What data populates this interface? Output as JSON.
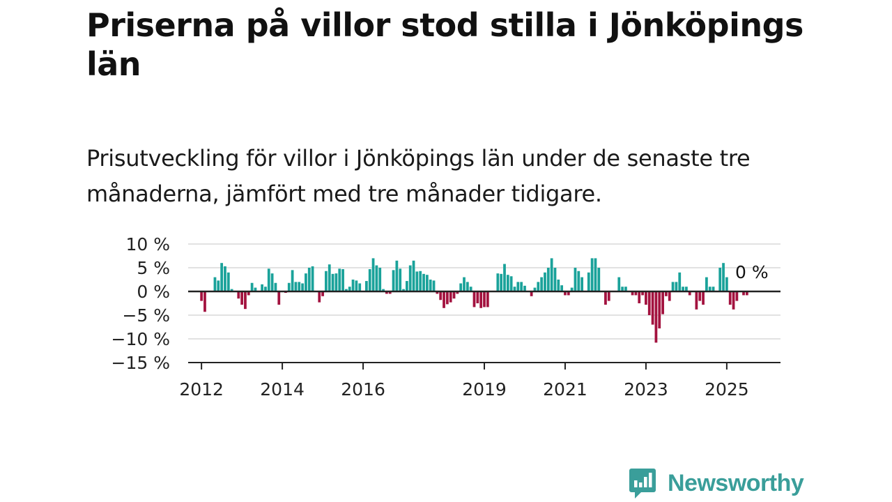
{
  "header": {
    "title": "Priserna på villor stod stilla i Jönköpings län",
    "subtitle": "Prisutveckling för villor i Jönköpings län under de senaste tre månaderna, jämfört med tre månader tidigare."
  },
  "brand": {
    "name": "Newsworthy"
  },
  "colors": {
    "positive": "#1aa29a",
    "negative": "#a3123f",
    "grid": "#d9d9d9",
    "axis": "#222222",
    "brand": "#3a9e9a"
  },
  "chart_data": {
    "type": "bar",
    "ylim": [
      -15,
      10
    ],
    "yticks": [
      10,
      5,
      0,
      -5,
      -10,
      -15
    ],
    "ytick_labels": [
      "10 %",
      "5 %",
      "0 %",
      "−5 %",
      "−10 %",
      "−15 %"
    ],
    "xticks": [
      2012,
      2014,
      2016,
      2019,
      2021,
      2023,
      2025
    ],
    "xtick_labels": [
      "2012",
      "2014",
      "2016",
      "2019",
      "2021",
      "2023",
      "2025"
    ],
    "x_start": 2011.67,
    "x_end": 2026.33,
    "start_year": 2012,
    "start_month": 1,
    "grid": true,
    "last_value_label": "0 %",
    "values": [
      -2.0,
      -4.3,
      0.0,
      0.0,
      3.0,
      2.3,
      6.0,
      5.3,
      4.0,
      0.5,
      0.0,
      -1.5,
      -2.8,
      -3.7,
      -0.8,
      1.8,
      0.8,
      0.0,
      1.5,
      1.0,
      4.8,
      3.8,
      1.8,
      -2.8,
      0.0,
      -0.3,
      1.8,
      4.5,
      2.0,
      2.0,
      1.7,
      3.8,
      5.0,
      5.3,
      0.0,
      -2.3,
      -1.0,
      4.3,
      5.7,
      3.7,
      3.8,
      4.8,
      4.7,
      0.5,
      1.0,
      2.5,
      2.3,
      1.7,
      0.0,
      2.2,
      4.7,
      7.0,
      5.5,
      5.0,
      0.5,
      -0.5,
      -0.5,
      4.5,
      6.5,
      4.8,
      0.5,
      2.2,
      5.5,
      6.5,
      4.2,
      4.3,
      3.7,
      3.5,
      2.5,
      2.3,
      -0.5,
      -1.8,
      -3.5,
      -2.7,
      -2.3,
      -1.5,
      -0.5,
      1.7,
      3.0,
      2.0,
      1.0,
      -3.3,
      -2.5,
      -3.5,
      -3.3,
      -3.3,
      0.0,
      0.0,
      3.8,
      3.7,
      5.8,
      3.5,
      3.2,
      1.0,
      2.0,
      2.0,
      1.2,
      0.0,
      -1.0,
      0.8,
      2.0,
      3.0,
      4.0,
      5.0,
      7.0,
      5.0,
      2.5,
      1.3,
      -0.8,
      -0.8,
      0.8,
      5.0,
      4.3,
      3.0,
      0.0,
      4.0,
      7.0,
      7.0,
      5.0,
      0.0,
      -2.8,
      -2.0,
      0.0,
      0.0,
      3.0,
      1.0,
      1.0,
      0.0,
      -0.8,
      -0.8,
      -2.5,
      -0.8,
      -2.8,
      -5.0,
      -7.0,
      -10.8,
      -7.8,
      -4.8,
      -1.0,
      -2.0,
      2.0,
      2.0,
      4.0,
      1.0,
      1.0,
      -0.8,
      0.0,
      -3.8,
      -2.0,
      -2.8,
      3.0,
      1.0,
      1.0,
      0.0,
      5.0,
      6.0,
      3.0,
      -2.8,
      -3.8,
      -2.0,
      0.0,
      -0.8,
      -0.8,
      0.0
    ]
  }
}
